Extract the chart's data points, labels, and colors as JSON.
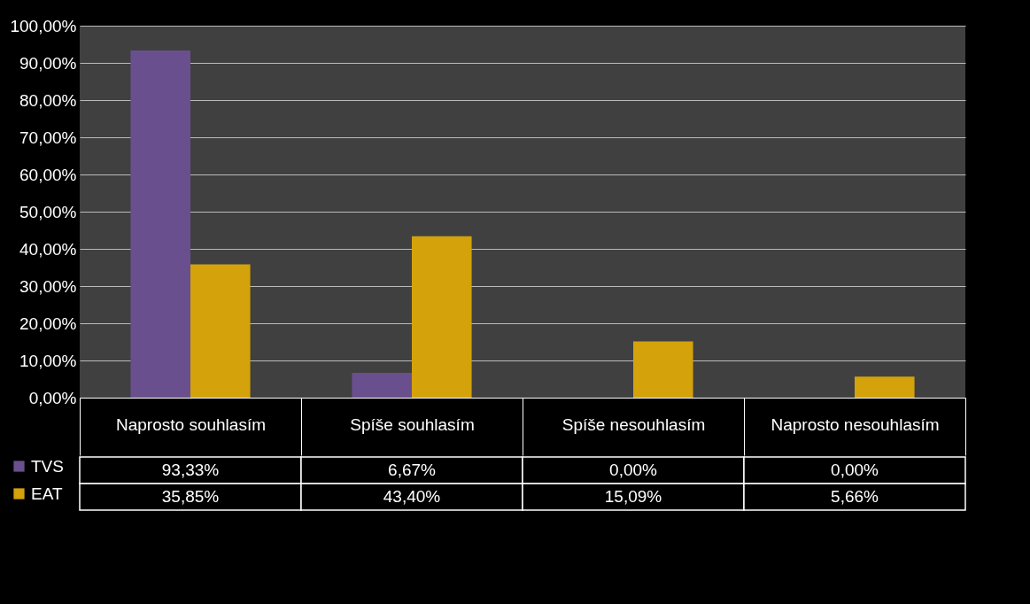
{
  "chart_data": {
    "type": "bar",
    "categories": [
      "Naprosto souhlasím",
      "Spíše souhlasím",
      "Spíše nesouhlasím",
      "Naprosto nesouhlasím"
    ],
    "series": [
      {
        "name": "TVS",
        "color": "#6a4f8e",
        "values": [
          93.33,
          6.67,
          0,
          0
        ],
        "value_labels": [
          "93,33%",
          "6,67%",
          "0,00%",
          "0,00%"
        ]
      },
      {
        "name": "EAT",
        "color": "#d4a20a",
        "values": [
          35.85,
          43.4,
          15.09,
          5.66
        ],
        "value_labels": [
          "35,85%",
          "43,40%",
          "15,09%",
          "5,66%"
        ]
      }
    ],
    "ylim": [
      0,
      100
    ],
    "yticks": [
      {
        "value": 0,
        "label": "0,00%"
      },
      {
        "value": 10,
        "label": "10,00%"
      },
      {
        "value": 20,
        "label": "20,00%"
      },
      {
        "value": 30,
        "label": "30,00%"
      },
      {
        "value": 40,
        "label": "40,00%"
      },
      {
        "value": 50,
        "label": "50,00%"
      },
      {
        "value": 60,
        "label": "60,00%"
      },
      {
        "value": 70,
        "label": "70,00%"
      },
      {
        "value": 80,
        "label": "80,00%"
      },
      {
        "value": 90,
        "label": "90,00%"
      },
      {
        "value": 100,
        "label": "100,00%"
      }
    ],
    "grid": "y",
    "legend": "bottom left"
  }
}
